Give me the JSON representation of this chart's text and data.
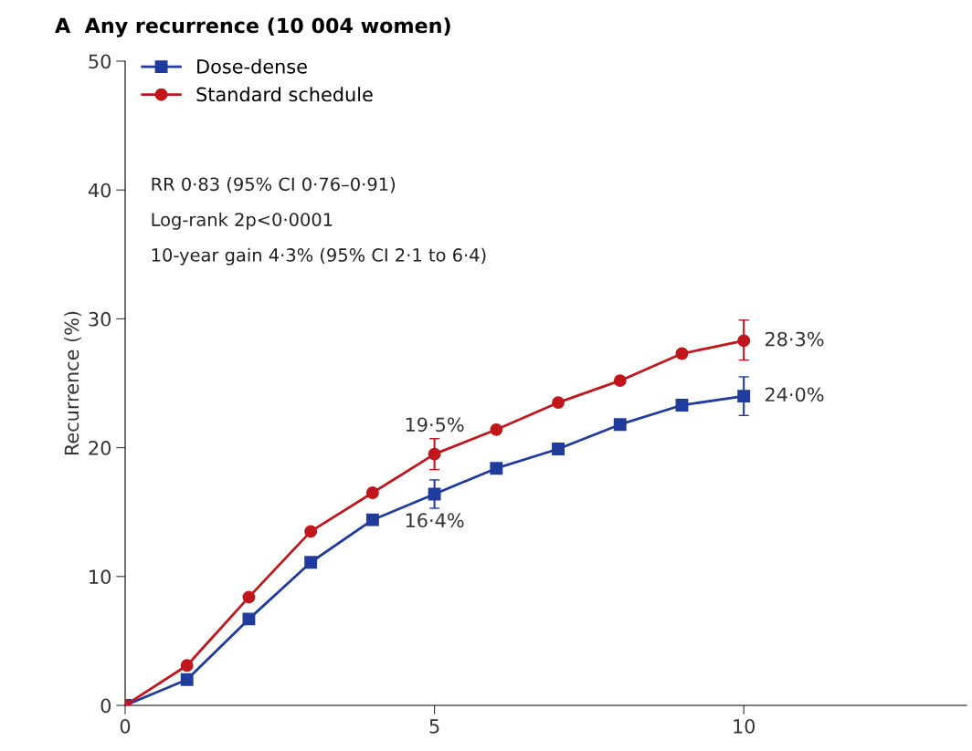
{
  "chart_data": {
    "type": "line",
    "title": "A  Any recurrence (10 004 women)",
    "ylabel": "Recurrence (%)",
    "x": [
      0,
      1,
      2,
      3,
      4,
      5,
      6,
      7,
      8,
      9,
      10
    ],
    "series": [
      {
        "name": "Dose-dense",
        "color": "#1f3c9c",
        "marker": "square",
        "values": [
          0,
          2.0,
          6.7,
          11.1,
          14.4,
          16.4,
          18.4,
          19.9,
          21.8,
          23.3,
          24.0
        ],
        "errors": [
          null,
          null,
          null,
          null,
          null,
          [
            15.3,
            17.5
          ],
          null,
          null,
          null,
          null,
          [
            22.5,
            25.5
          ]
        ],
        "value_labels": [
          null,
          null,
          null,
          null,
          null,
          "16·4%",
          null,
          null,
          null,
          null,
          "24·0%"
        ]
      },
      {
        "name": "Standard schedule",
        "color": "#c0171c",
        "marker": "circle",
        "values": [
          0,
          3.1,
          8.4,
          13.5,
          16.5,
          19.5,
          21.4,
          23.5,
          25.2,
          27.3,
          28.3
        ],
        "errors": [
          null,
          null,
          null,
          null,
          null,
          [
            18.3,
            20.7
          ],
          null,
          null,
          null,
          null,
          [
            26.8,
            29.9
          ]
        ],
        "value_labels": [
          null,
          null,
          null,
          null,
          null,
          "19·5%",
          null,
          null,
          null,
          null,
          "28·3%"
        ]
      }
    ],
    "annotations": [
      "RR 0·83 (95% CI 0·76–0·91)",
      "Log-rank 2p<0·0001",
      "10-year gain 4·3% (95% CI 2·1 to 6·4)"
    ],
    "xlim": [
      0,
      13.6
    ],
    "xticks": [
      0,
      5,
      10
    ],
    "ylim": [
      0,
      50
    ],
    "yticks": [
      0,
      10,
      20,
      30,
      40,
      50
    ],
    "grid": false,
    "legend": "top left",
    "line_style": "solid"
  }
}
